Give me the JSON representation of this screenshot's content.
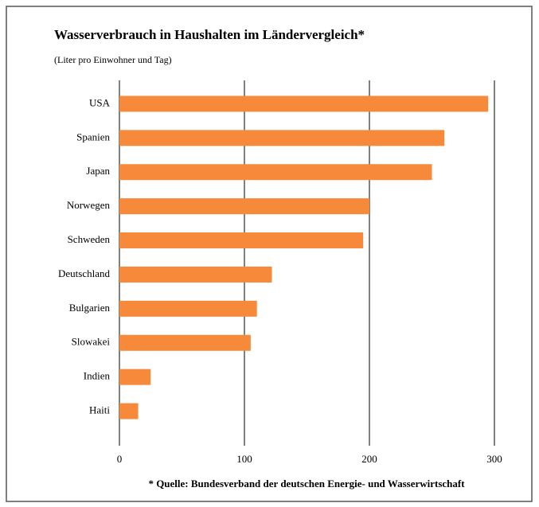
{
  "chart_data": {
    "type": "bar",
    "orientation": "horizontal",
    "title": "Wasserverbrauch in Haushalten im Ländervergleich*",
    "subtitle": "(Liter pro Einwohner und Tag)",
    "annotation": "* Quelle: Bundesverband der deutschen Energie- und Wasserwirtschaft",
    "categories": [
      "USA",
      "Spanien",
      "Japan",
      "Norwegen",
      "Schweden",
      "Deutschland",
      "Bulgarien",
      "Slowakei",
      "Indien",
      "Haiti"
    ],
    "values": [
      295,
      260,
      250,
      200,
      195,
      122,
      110,
      105,
      25,
      15
    ],
    "color": "#f7893a",
    "xlim": [
      0,
      300
    ],
    "xticks": [
      0,
      100,
      200,
      300
    ],
    "grid": true
  }
}
